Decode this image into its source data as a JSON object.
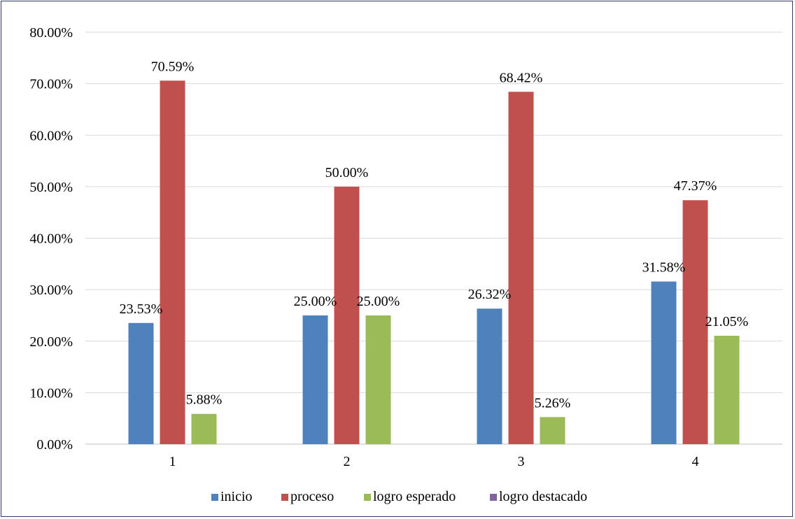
{
  "chart_data": {
    "type": "bar",
    "categories": [
      "1",
      "2",
      "3",
      "4"
    ],
    "series": [
      {
        "name": "inicio",
        "color": "#4f81bd",
        "values": [
          23.53,
          25.0,
          26.32,
          31.58
        ],
        "labels": [
          "23.53%",
          "25.00%",
          "26.32%",
          "31.58%"
        ]
      },
      {
        "name": "proceso",
        "color": "#c0504d",
        "values": [
          70.59,
          50.0,
          68.42,
          47.37
        ],
        "labels": [
          "70.59%",
          "50.00%",
          "68.42%",
          "47.37%"
        ]
      },
      {
        "name": "logro esperado",
        "color": "#9bbb59",
        "values": [
          5.88,
          25.0,
          5.26,
          21.05
        ],
        "labels": [
          "5.88%",
          "25.00%",
          "5.26%",
          "21.05%"
        ]
      },
      {
        "name": "logro destacado",
        "color": "#8064a2",
        "values": [
          0,
          0,
          0,
          0
        ],
        "labels": [
          "",
          "",
          "",
          ""
        ]
      }
    ],
    "y_ticks": [
      "0.00%",
      "10.00%",
      "20.00%",
      "30.00%",
      "40.00%",
      "50.00%",
      "60.00%",
      "70.00%",
      "80.00%"
    ],
    "ylim": [
      0,
      80
    ],
    "grid": true,
    "legend_position": "bottom",
    "title": "",
    "xlabel": "",
    "ylabel": ""
  }
}
